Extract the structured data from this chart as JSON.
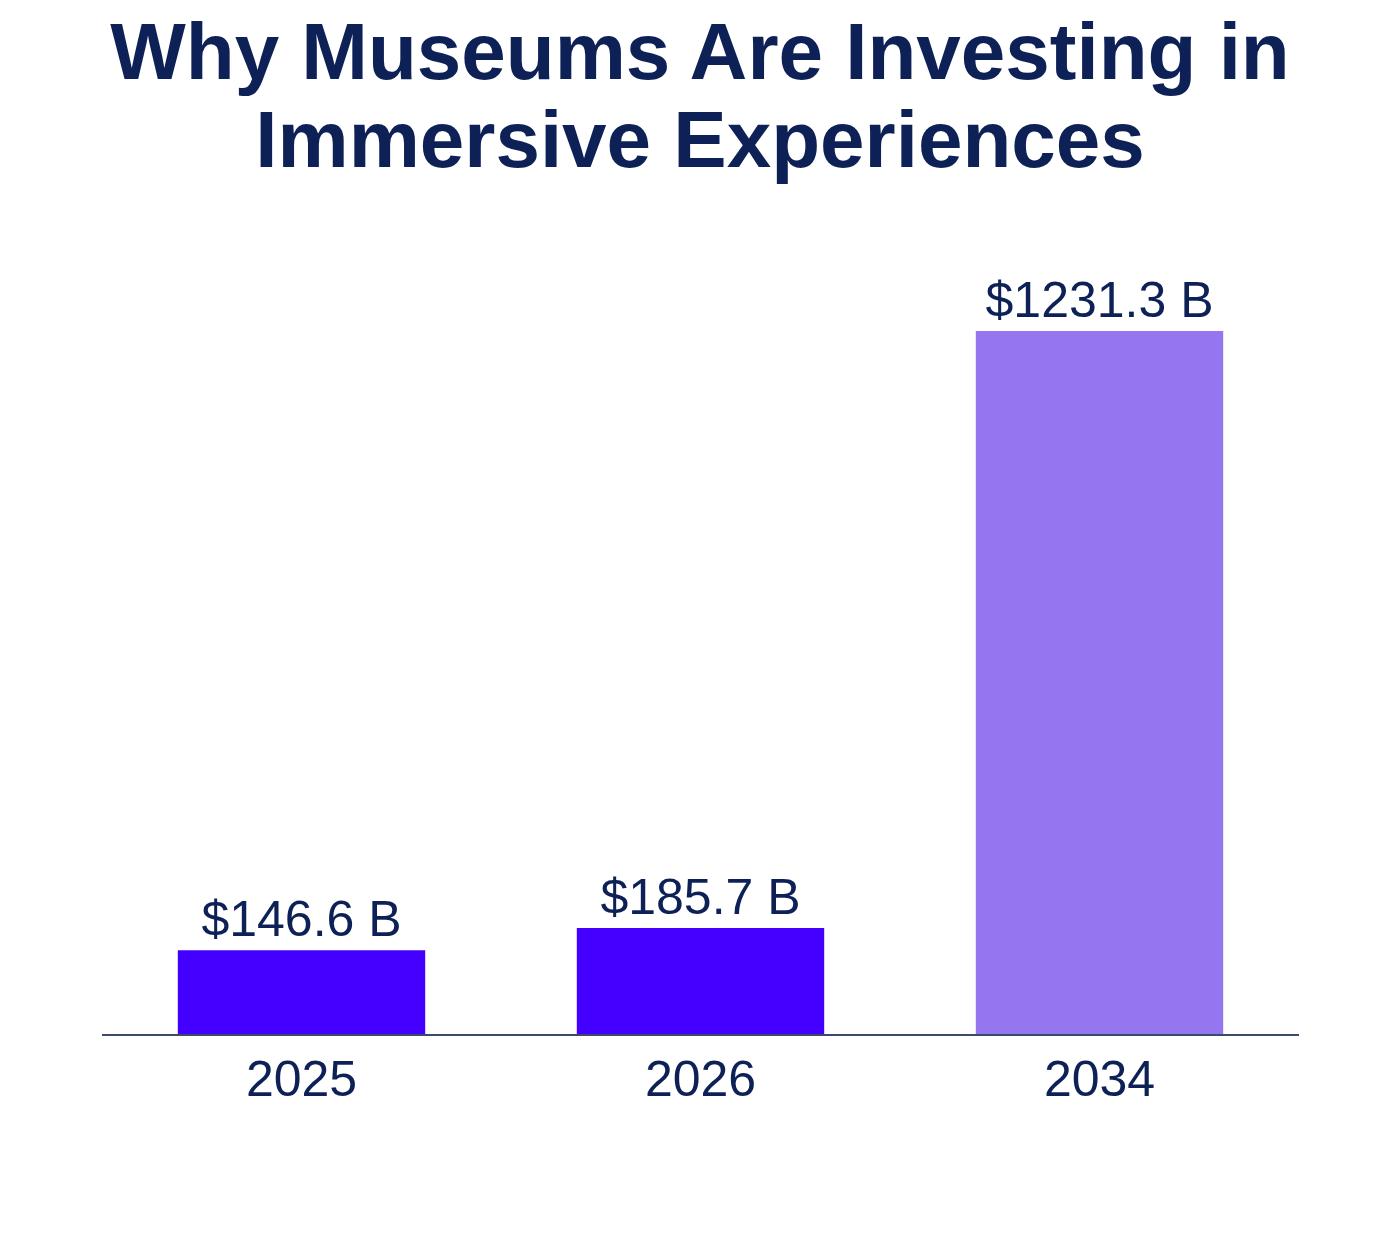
{
  "chart_data": {
    "type": "bar",
    "title": "Why Museums Are Investing in Immersive Experiences",
    "categories": [
      "2025",
      "2026",
      "2034"
    ],
    "values": [
      146.6,
      185.7,
      1231.3
    ],
    "colors": [
      "#4400ff",
      "#4400ff",
      "#9575f0"
    ],
    "value_labels": [
      "$146.6 B",
      "$185.7 B",
      "$1231.3 B"
    ]
  }
}
